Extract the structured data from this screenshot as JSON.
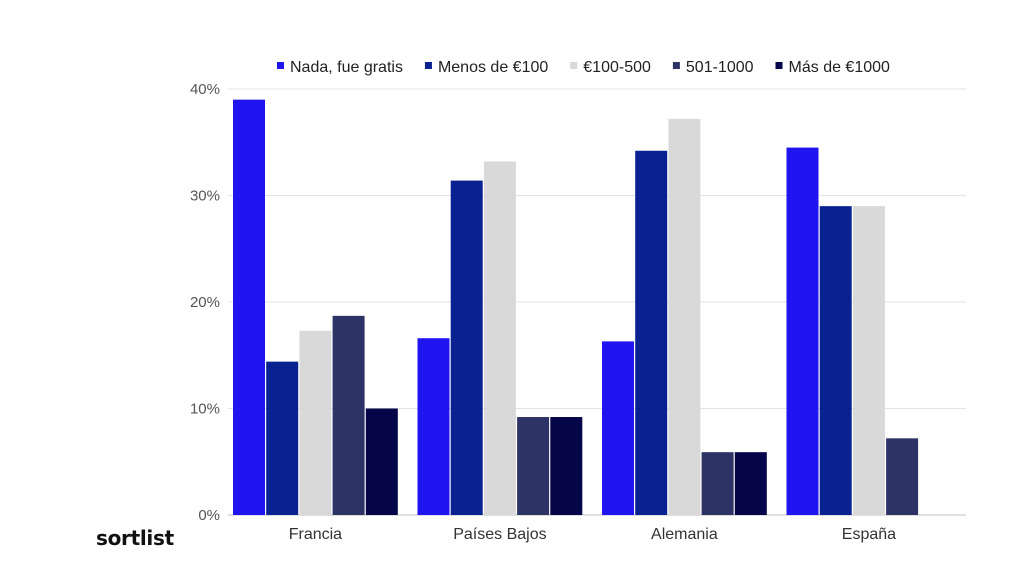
{
  "chart_data": {
    "type": "bar",
    "categories": [
      "Francia",
      "Países Bajos",
      "Alemania",
      "España"
    ],
    "series": [
      {
        "name": "Nada, fue gratis",
        "color": "#2014F0",
        "values": [
          39,
          16.6,
          16.3,
          34.5
        ]
      },
      {
        "name": "Menos de €100",
        "color": "#0A2291",
        "values": [
          14.4,
          31.4,
          34.2,
          29
        ]
      },
      {
        "name": "€100-500",
        "color": "#D9D9D9",
        "values": [
          17.3,
          33.2,
          37.2,
          29
        ]
      },
      {
        "name": "501-1000",
        "color": "#2E3366",
        "values": [
          18.7,
          9.2,
          5.9,
          7.2
        ]
      },
      {
        "name": "Más de €1000",
        "color": "#05064A",
        "values": [
          10,
          9.2,
          5.9,
          0
        ]
      }
    ],
    "ylim": [
      0,
      40
    ],
    "yticks": [
      "0%",
      "10%",
      "20%",
      "30%",
      "40%"
    ],
    "grid": true,
    "legend_position": "top"
  },
  "brand": {
    "logo_text": "sortlist"
  }
}
